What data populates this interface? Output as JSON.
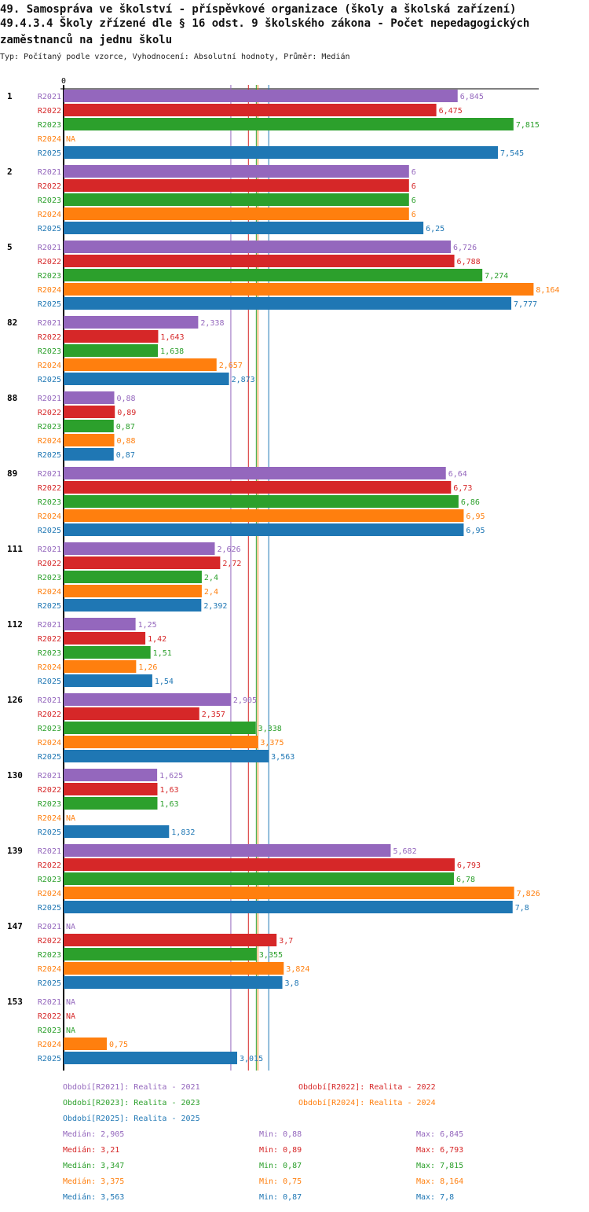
{
  "chart_data": {
    "type": "bar",
    "title_lines": [
      "49. Samospráva ve školství - příspěvkové organizace (školy a školská zařízení)",
      "49.4.3.4 Školy zřízené dle § 16 odst. 9 školského zákona - Počet nepedagogických",
      "zaměstnanců na jednu školu"
    ],
    "subtitle": "Typ: Počítaný podle vzorce, Vyhodnocení: Absolutní hodnoty, Průměr: Medián",
    "axis_zero_label": "0",
    "xlim": [
      0,
      8.4
    ],
    "na_label": "NA",
    "series": [
      {
        "name": "R2021",
        "color": "#9467bd",
        "legend": "Období[R2021]: Realita - 2021",
        "values": [
          6.845,
          6,
          6.726,
          2.338,
          0.88,
          6.64,
          2.626,
          1.25,
          2.905,
          1.625,
          5.682,
          null,
          null
        ],
        "labels": [
          "6,845",
          "6",
          "6,726",
          "2,338",
          "0,88",
          "6,64",
          "2,626",
          "1,25",
          "2,905",
          "1,625",
          "5,682",
          "NA",
          "NA"
        ],
        "stats": {
          "median": 2.905,
          "min": 0.88,
          "max": 6.845,
          "median_text": "Medián: 2,905",
          "min_text": "Min: 0,88",
          "max_text": "Max: 6,845"
        }
      },
      {
        "name": "R2022",
        "color": "#d62728",
        "legend": "Období[R2022]: Realita - 2022",
        "values": [
          6.475,
          6,
          6.788,
          1.643,
          0.89,
          6.73,
          2.72,
          1.42,
          2.357,
          1.63,
          6.793,
          3.7,
          null
        ],
        "labels": [
          "6,475",
          "6",
          "6,788",
          "1,643",
          "0,89",
          "6,73",
          "2,72",
          "1,42",
          "2,357",
          "1,63",
          "6,793",
          "3,7",
          "NA"
        ],
        "stats": {
          "median": 3.21,
          "min": 0.89,
          "max": 6.793,
          "median_text": "Medián: 3,21",
          "min_text": "Min: 0,89",
          "max_text": "Max: 6,793"
        }
      },
      {
        "name": "R2023",
        "color": "#2ca02c",
        "legend": "Období[R2023]: Realita - 2023",
        "values": [
          7.815,
          6,
          7.274,
          1.638,
          0.87,
          6.86,
          2.4,
          1.51,
          3.338,
          1.63,
          6.78,
          3.355,
          null
        ],
        "labels": [
          "7,815",
          "6",
          "7,274",
          "1,638",
          "0,87",
          "6,86",
          "2,4",
          "1,51",
          "3,338",
          "1,63",
          "6,78",
          "3,355",
          "NA"
        ],
        "stats": {
          "median": 3.347,
          "min": 0.87,
          "max": 7.815,
          "median_text": "Medián: 3,347",
          "min_text": "Min: 0,87",
          "max_text": "Max: 7,815"
        }
      },
      {
        "name": "R2024",
        "color": "#ff7f0e",
        "legend": "Období[R2024]: Realita - 2024",
        "values": [
          null,
          6,
          8.164,
          2.657,
          0.88,
          6.95,
          2.4,
          1.26,
          3.375,
          null,
          7.826,
          3.824,
          0.75
        ],
        "labels": [
          "NA",
          "6",
          "8,164",
          "2,657",
          "0,88",
          "6,95",
          "2,4",
          "1,26",
          "3,375",
          "NA",
          "7,826",
          "3,824",
          "0,75"
        ],
        "stats": {
          "median": 3.375,
          "min": 0.75,
          "max": 8.164,
          "median_text": "Medián: 3,375",
          "min_text": "Min: 0,75",
          "max_text": "Max: 8,164"
        }
      },
      {
        "name": "R2025",
        "color": "#1f77b4",
        "legend": "Období[R2025]: Realita - 2025",
        "values": [
          7.545,
          6.25,
          7.777,
          2.873,
          0.87,
          6.95,
          2.392,
          1.54,
          3.563,
          1.832,
          7.8,
          3.8,
          3.015
        ],
        "labels": [
          "7,545",
          "6,25",
          "7,777",
          "2,873",
          "0,87",
          "6,95",
          "2,392",
          "1,54",
          "3,563",
          "1,832",
          "7,8",
          "3,8",
          "3,015"
        ],
        "stats": {
          "median": 3.563,
          "min": 0.87,
          "max": 7.8,
          "median_text": "Medián: 3,563",
          "min_text": "Min: 0,87",
          "max_text": "Max: 7,8"
        }
      }
    ],
    "categories": [
      "1",
      "2",
      "5",
      "82",
      "88",
      "89",
      "111",
      "112",
      "126",
      "130",
      "139",
      "147",
      "153"
    ]
  }
}
